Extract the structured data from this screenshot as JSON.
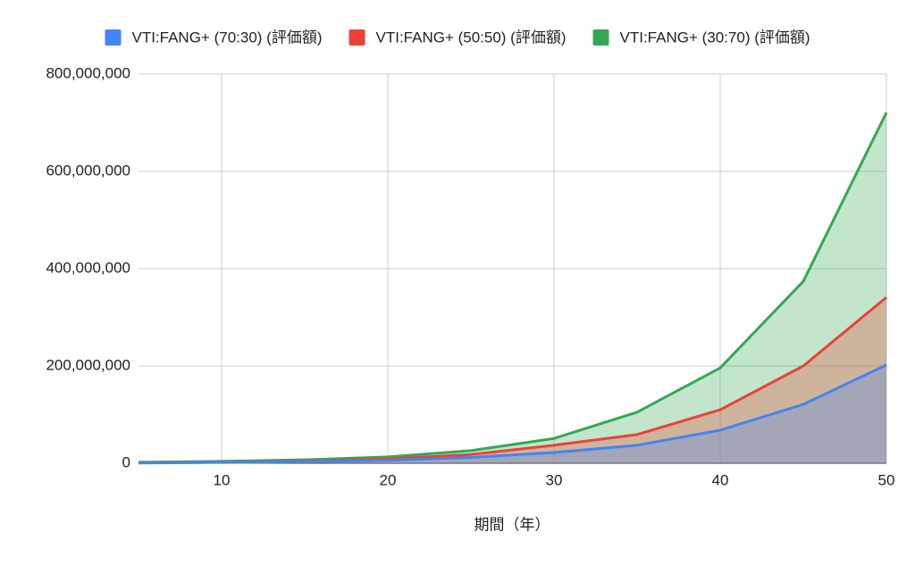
{
  "chart_data": {
    "type": "area",
    "x_label": "期間（年）",
    "x": [
      5,
      10,
      15,
      20,
      25,
      30,
      35,
      40,
      45,
      50
    ],
    "series": [
      {
        "name": "VTI:FANG+ (70:30) (評価額)",
        "color": "#4285f4",
        "values": [
          500000,
          1500000,
          3000000,
          6000000,
          12000000,
          22000000,
          37000000,
          68000000,
          121000000,
          202000000
        ]
      },
      {
        "name": "VTI:FANG+ (50:50) (評価額)",
        "color": "#ea4335",
        "values": [
          1000000,
          2000000,
          4000000,
          9000000,
          18000000,
          37000000,
          59000000,
          110000000,
          200000000,
          341000000
        ]
      },
      {
        "name": "VTI:FANG+ (30:70) (評価額)",
        "color": "#34a853",
        "values": [
          2000000,
          4000000,
          7000000,
          13000000,
          26000000,
          51000000,
          105000000,
          196000000,
          374000000,
          721000000
        ]
      }
    ],
    "xlim": [
      5,
      50
    ],
    "xticks": [
      10,
      20,
      30,
      40,
      50
    ],
    "ylim": [
      0,
      800000000
    ],
    "yticks": [
      0,
      {
        "value": 200000000,
        "label": "200,000,000"
      },
      {
        "value": 400000000,
        "label": "400,000,000"
      },
      {
        "value": 600000000,
        "label": "600,000,000"
      },
      {
        "value": 800000000,
        "label": "800,000,000"
      }
    ],
    "grid": true,
    "legend": "top"
  }
}
